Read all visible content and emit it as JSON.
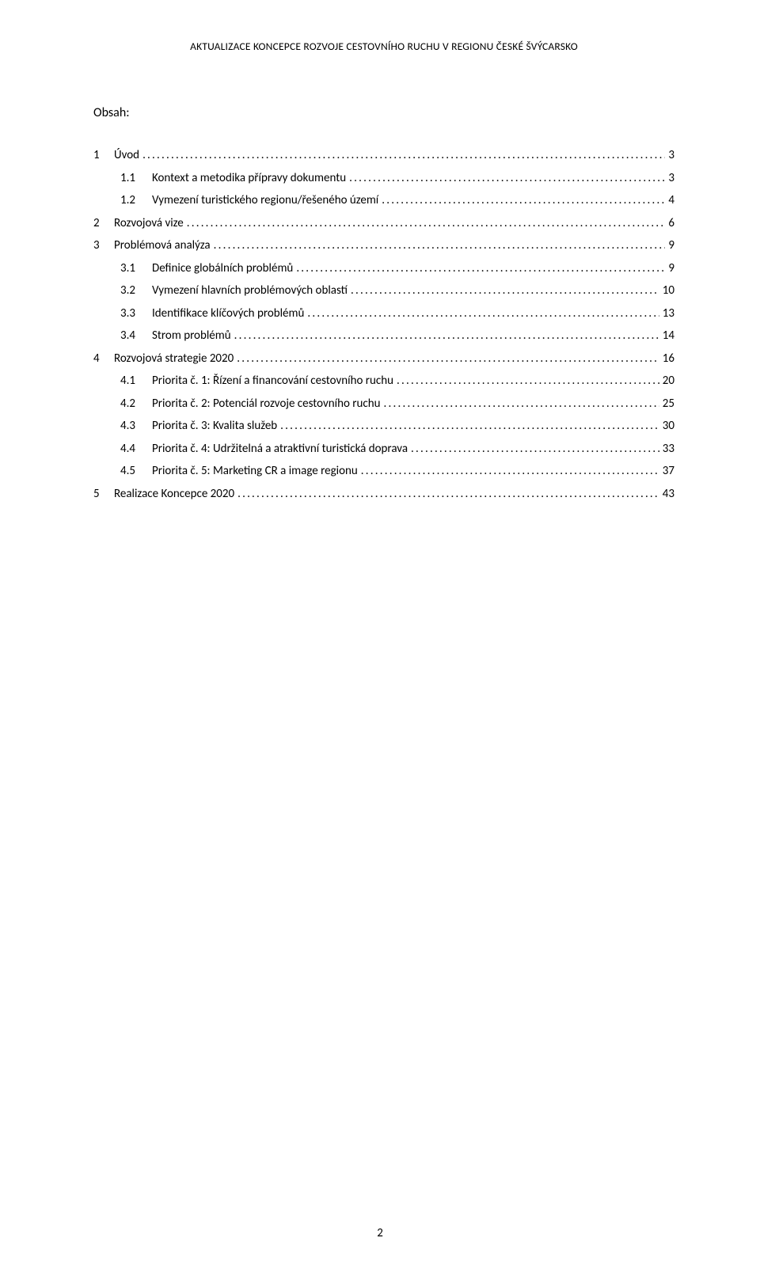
{
  "running_header": "AKTUALIZACE KONCEPCE ROZVOJE CESTOVNÍHO RUCHU V REGIONU ČESKÉ ŠVÝCARSKO",
  "obsah_label": "Obsah:",
  "page_number": "2",
  "typography": {
    "body_fontsize_pt": 11,
    "header_fontsize_pt": 10,
    "font_family": "Calibri",
    "text_color": "#000000",
    "background_color": "#ffffff"
  },
  "toc": {
    "entries": [
      {
        "level": 1,
        "num": "1",
        "title": "Úvod",
        "page": "3"
      },
      {
        "level": 2,
        "num": "1.1",
        "title": "Kontext a metodika přípravy dokumentu",
        "page": "3"
      },
      {
        "level": 2,
        "num": "1.2",
        "title": "Vymezení turistického regionu/řešeného území",
        "page": "4"
      },
      {
        "level": 1,
        "num": "2",
        "title": "Rozvojová vize",
        "page": "6"
      },
      {
        "level": 1,
        "num": "3",
        "title": "Problémová analýza",
        "page": "9"
      },
      {
        "level": 2,
        "num": "3.1",
        "title": "Definice globálních problémů",
        "page": "9"
      },
      {
        "level": 2,
        "num": "3.2",
        "title": "Vymezení hlavních problémových oblastí",
        "page": "10"
      },
      {
        "level": 2,
        "num": "3.3",
        "title": "Identifikace klíčových problémů",
        "page": "13"
      },
      {
        "level": 2,
        "num": "3.4",
        "title": "Strom problémů",
        "page": "14"
      },
      {
        "level": 1,
        "num": "4",
        "title": "Rozvojová strategie 2020",
        "page": "16"
      },
      {
        "level": 2,
        "num": "4.1",
        "title": "Priorita č. 1: Řízení a financování cestovního ruchu",
        "page": "20"
      },
      {
        "level": 2,
        "num": "4.2",
        "title": "Priorita č. 2: Potenciál rozvoje cestovního ruchu",
        "page": "25"
      },
      {
        "level": 2,
        "num": "4.3",
        "title": "Priorita č. 3: Kvalita služeb",
        "page": "30"
      },
      {
        "level": 2,
        "num": "4.4",
        "title": "Priorita č. 4: Udržitelná a atraktivní turistická doprava",
        "page": "33"
      },
      {
        "level": 2,
        "num": "4.5",
        "title": "Priorita č. 5: Marketing CR a image regionu",
        "page": "37"
      },
      {
        "level": 1,
        "num": "5",
        "title": "Realizace Koncepce 2020",
        "page": "43"
      }
    ]
  }
}
